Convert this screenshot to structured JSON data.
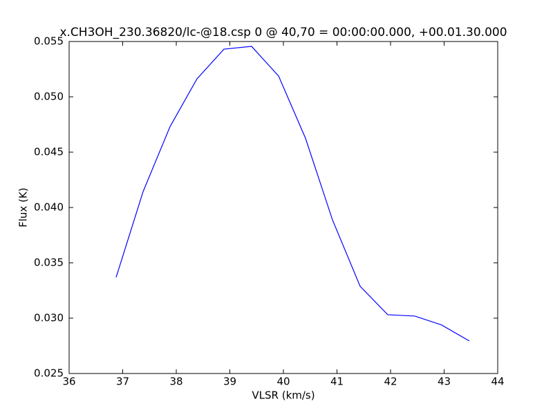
{
  "chart_data": {
    "type": "line",
    "title": "x.CH3OH_230.36820/lc-@18.csp 0 @ 40,70 = 00:00:00.000, +00.01.30.000",
    "x_label": "VLSR (km/s)",
    "y_label": "Flux (K)",
    "x": [
      36.877,
      37.381,
      37.884,
      38.387,
      38.89,
      39.406,
      39.91,
      40.413,
      40.916,
      41.432,
      41.948,
      42.452,
      42.955,
      43.471
    ],
    "series": [
      {
        "color": "#0000ff",
        "values": [
          0.03369,
          0.04144,
          0.04731,
          0.05163,
          0.05431,
          0.05456,
          0.05188,
          0.04625,
          0.03888,
          0.03288,
          0.03031,
          0.03019,
          0.02938,
          0.02794
        ]
      }
    ],
    "xlim": [
      36,
      44
    ],
    "xticks": [
      36,
      37,
      38,
      39,
      40,
      41,
      42,
      43,
      44
    ],
    "ylim": [
      0.025,
      0.055
    ],
    "yticks": [
      0.025,
      {
        "value": 0.03,
        "label": "0.030"
      },
      0.035,
      {
        "value": 0.04,
        "label": "0.040"
      },
      0.045,
      {
        "value": 0.05,
        "label": "0.050"
      },
      0.055
    ]
  }
}
